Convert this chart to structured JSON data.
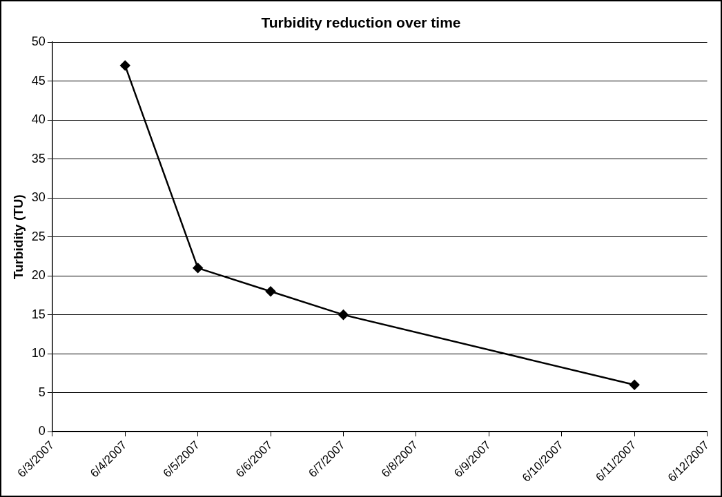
{
  "chart_data": {
    "type": "line",
    "title": "Turbidity reduction over time",
    "ylabel": "Turbidity (TU)",
    "x": [
      "2007-06-04",
      "2007-06-05",
      "2007-06-06",
      "2007-06-07",
      "2007-06-11"
    ],
    "series": [
      {
        "color": "#000000",
        "values": [
          47,
          21,
          18,
          15,
          6
        ]
      }
    ],
    "xlim": [
      "2007-06-03",
      "2007-06-12"
    ],
    "xticks": [
      {
        "value": "2007-06-03",
        "label": "6/3/2007"
      },
      {
        "value": "2007-06-04",
        "label": "6/4/2007"
      },
      {
        "value": "2007-06-05",
        "label": "6/5/2007"
      },
      {
        "value": "2007-06-06",
        "label": "6/6/2007"
      },
      {
        "value": "2007-06-07",
        "label": "6/7/2007"
      },
      {
        "value": "2007-06-08",
        "label": "6/8/2007"
      },
      {
        "value": "2007-06-09",
        "label": "6/9/2007"
      },
      {
        "value": "2007-06-10",
        "label": "6/10/2007"
      },
      {
        "value": "2007-06-11",
        "label": "6/11/2007"
      },
      {
        "value": "2007-06-12",
        "label": "6/12/2007"
      }
    ],
    "ylim": [
      0,
      50
    ],
    "yticks": [
      0,
      5,
      10,
      15,
      20,
      25,
      30,
      35,
      40,
      45,
      50
    ],
    "grid": "y",
    "legend": false,
    "marker": "diamond",
    "line_style": "solid"
  }
}
